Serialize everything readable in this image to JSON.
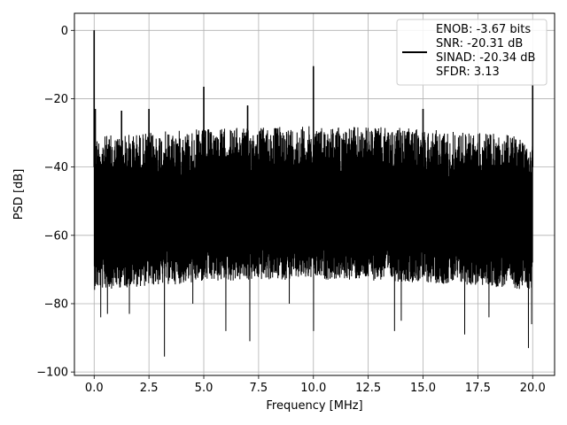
{
  "chart_data": {
    "type": "line",
    "xlabel": "Frequency [MHz]",
    "ylabel": "PSD [dB]",
    "xlim": [
      -0.9,
      21.0
    ],
    "ylim": [
      -101,
      5
    ],
    "xticks": [
      0.0,
      2.5,
      5.0,
      7.5,
      10.0,
      12.5,
      15.0,
      17.5,
      20.0
    ],
    "xtick_labels": [
      "0.0",
      "2.5",
      "5.0",
      "7.5",
      "10.0",
      "12.5",
      "15.0",
      "17.5",
      "20.0"
    ],
    "yticks": [
      0,
      -20,
      -40,
      -60,
      -80,
      -100
    ],
    "ytick_labels": [
      "0",
      "−20",
      "−40",
      "−60",
      "−80",
      "−100"
    ],
    "grid": true,
    "legend_position": "top-right",
    "series": [
      {
        "color": "#000000",
        "noise_floor": {
          "x_range": [
            0.0,
            20.0
          ],
          "upper_envelope_db": -29,
          "typical_low_db": -72,
          "deep_notches": [
            {
              "x": 0.3,
              "y": -84
            },
            {
              "x": 0.6,
              "y": -83
            },
            {
              "x": 1.6,
              "y": -83
            },
            {
              "x": 3.2,
              "y": -95.5
            },
            {
              "x": 4.5,
              "y": -80
            },
            {
              "x": 6.0,
              "y": -88
            },
            {
              "x": 7.1,
              "y": -91
            },
            {
              "x": 8.9,
              "y": -80
            },
            {
              "x": 10.0,
              "y": -88
            },
            {
              "x": 13.7,
              "y": -88
            },
            {
              "x": 14.0,
              "y": -85
            },
            {
              "x": 16.9,
              "y": -89
            },
            {
              "x": 18.0,
              "y": -84
            },
            {
              "x": 19.8,
              "y": -93
            },
            {
              "x": 19.95,
              "y": -86
            }
          ]
        },
        "spurs": [
          {
            "x": 0.0,
            "y": 0
          },
          {
            "x": 0.05,
            "y": -23
          },
          {
            "x": 1.25,
            "y": -23.5
          },
          {
            "x": 2.5,
            "y": -23
          },
          {
            "x": 5.0,
            "y": -16.5
          },
          {
            "x": 7.0,
            "y": -22
          },
          {
            "x": 10.0,
            "y": -10.5
          },
          {
            "x": 15.0,
            "y": -23
          },
          {
            "x": 20.0,
            "y": -9
          }
        ]
      }
    ],
    "legend": {
      "lines": [
        "ENOB: -3.67 bits",
        "SNR: -20.31 dB",
        "SINAD: -20.34 dB",
        "SFDR: 3.13"
      ]
    }
  }
}
